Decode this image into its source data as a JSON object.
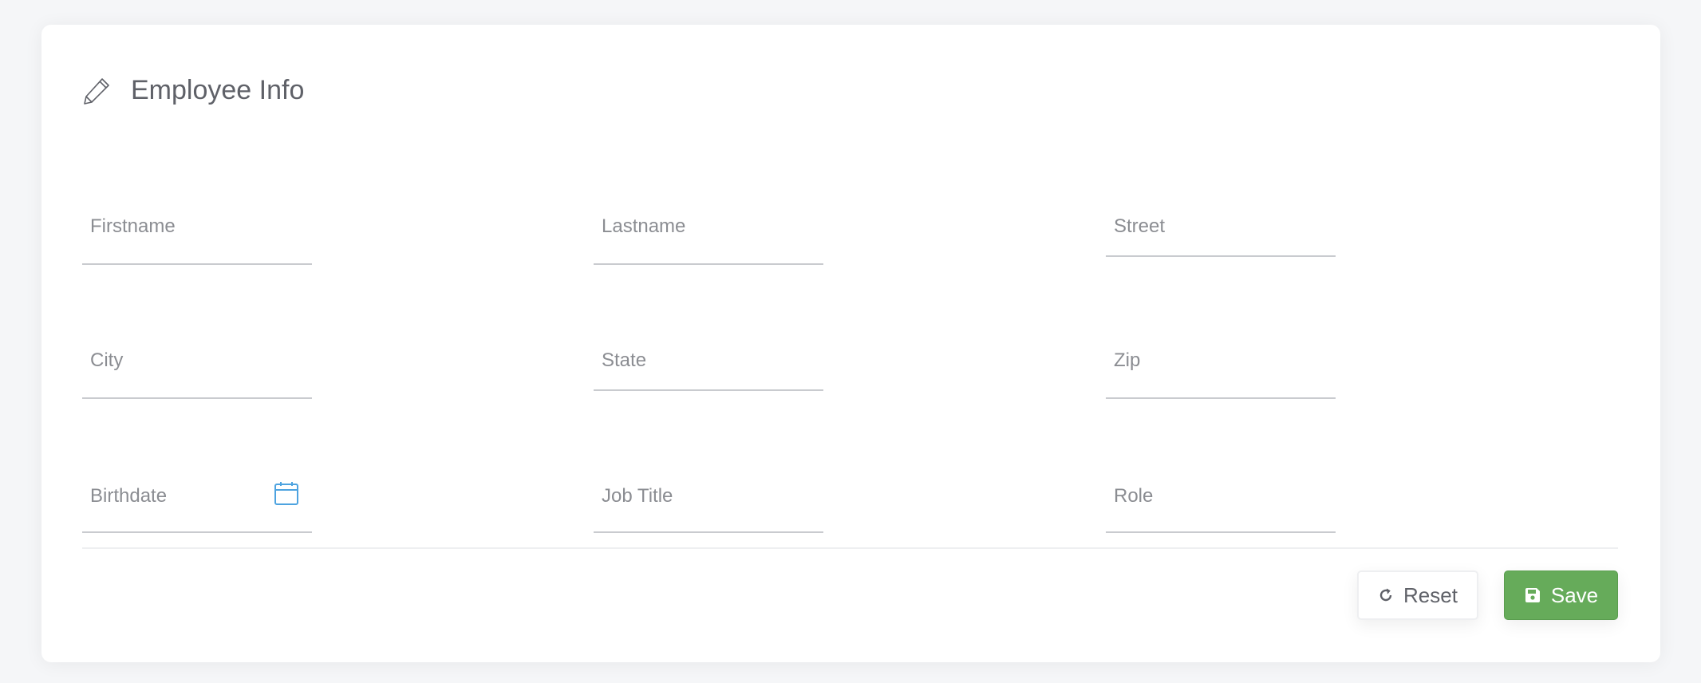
{
  "header": {
    "title": "Employee Info",
    "icon": "pencil-icon"
  },
  "fields": [
    {
      "label": "Firstname",
      "value": ""
    },
    {
      "label": "Lastname",
      "value": ""
    },
    {
      "label": "Street",
      "value": ""
    },
    {
      "label": "City",
      "value": ""
    },
    {
      "label": "State",
      "value": ""
    },
    {
      "label": "Zip",
      "value": ""
    },
    {
      "label": "Birthdate",
      "value": "",
      "icon": "calendar-icon"
    },
    {
      "label": "Job Title",
      "value": ""
    },
    {
      "label": "Role",
      "value": ""
    }
  ],
  "actions": {
    "reset_label": "Reset",
    "save_label": "Save",
    "reset_icon": "refresh-icon",
    "save_icon": "floppy-disk-icon"
  },
  "colors": {
    "accent": "#66ab5a",
    "calendar": "#4da3e0",
    "background": "#f5f6f8"
  }
}
